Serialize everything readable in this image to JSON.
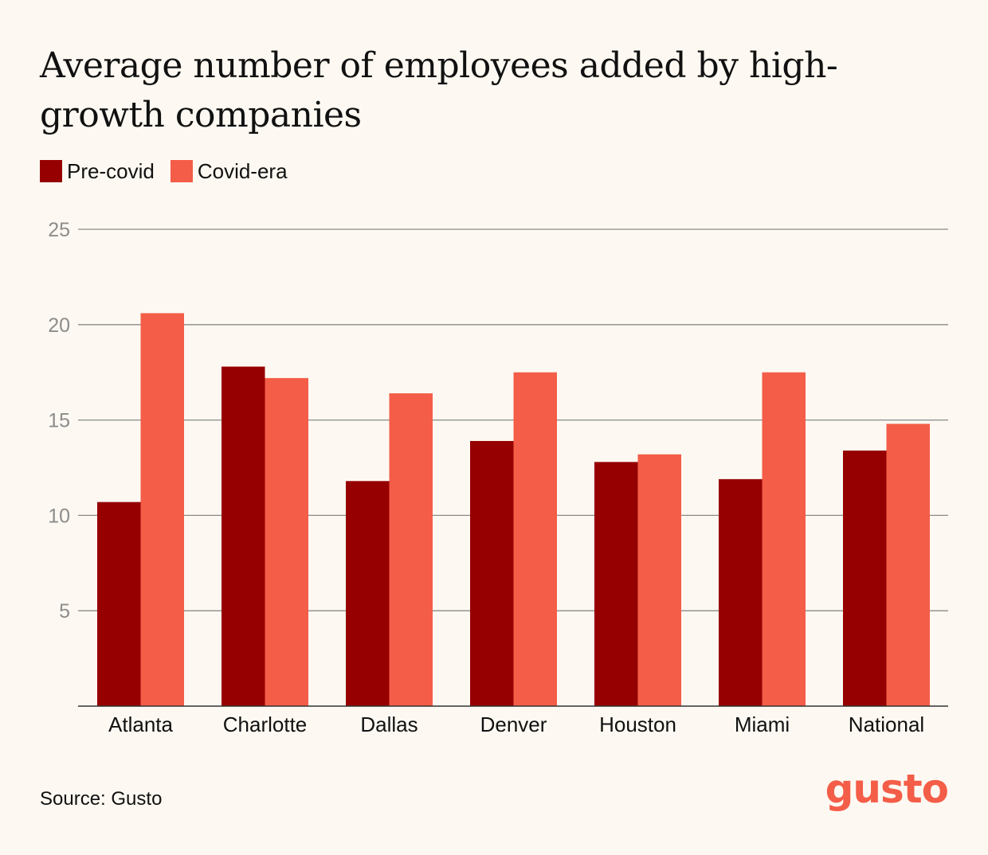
{
  "chart_data": {
    "type": "bar",
    "title": "Average number of employees added by high-growth companies",
    "categories": [
      "Atlanta",
      "Charlotte",
      "Dallas",
      "Denver",
      "Houston",
      "Miami",
      "National"
    ],
    "series": [
      {
        "name": "Pre-covid",
        "color": "#960000",
        "values": [
          10.7,
          17.8,
          11.8,
          13.9,
          12.8,
          11.9,
          13.4
        ]
      },
      {
        "name": "Covid-era",
        "color": "#f45d48",
        "values": [
          20.6,
          17.2,
          16.4,
          17.5,
          13.2,
          17.5,
          14.8
        ]
      }
    ],
    "ylim": [
      0,
      25
    ],
    "yticks": [
      5,
      10,
      15,
      20,
      25
    ],
    "xlabel": "",
    "ylabel": "",
    "grid": true,
    "legend": "top-left"
  },
  "footer": {
    "source": "Source: Gusto",
    "logo": "gusto"
  },
  "colors": {
    "background": "#fdf9f2",
    "gridline": "#8a8a8a",
    "tick_label": "#8c8c8c"
  }
}
